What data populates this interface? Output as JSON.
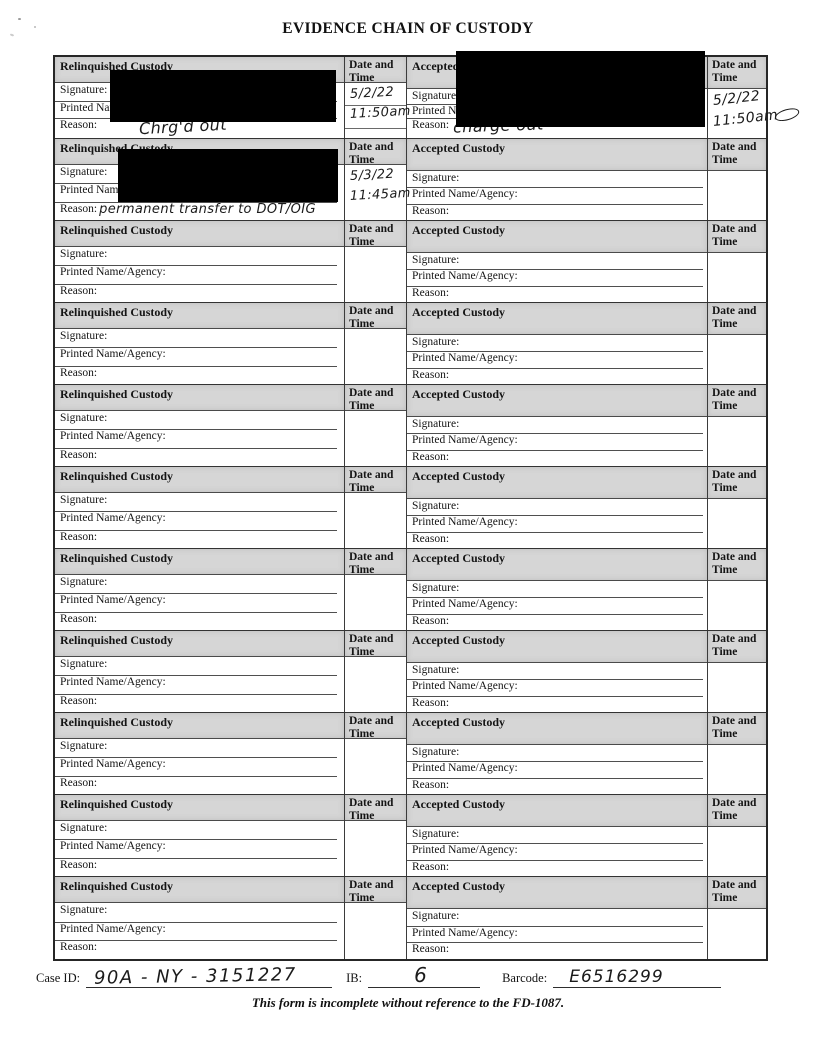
{
  "title": "EVIDENCE CHAIN OF CUSTODY",
  "labels": {
    "relinquished": "Relinquished Custody",
    "accepted": "Accepted Custody",
    "date_time": "Date and Time",
    "signature": "Signature:",
    "printed_name": "Printed Name/Agency:",
    "reason": "Reason:"
  },
  "colors": {
    "header_fill": "#d6d6d6",
    "ink": "#1b1b1b",
    "redaction": "#000000"
  },
  "blocks": [
    {
      "left": {
        "redacted": true,
        "dates": [
          "5/2/22",
          "11:50am"
        ],
        "reason": "Chrg'd out"
      },
      "right": {
        "redacted": true,
        "dates": [
          "5/2/22",
          "11:50am"
        ],
        "reason": "charge out",
        "flourish": true
      }
    },
    {
      "left": {
        "redacted": true,
        "dates": [
          "5/3/22",
          "11:45am"
        ],
        "reason": "permanent transfer to DOT/OIG"
      },
      "right": {
        "redacted": false
      }
    },
    {
      "left": {
        "redacted": false
      },
      "right": {
        "redacted": false
      }
    },
    {
      "left": {
        "redacted": false
      },
      "right": {
        "redacted": false
      }
    },
    {
      "left": {
        "redacted": false
      },
      "right": {
        "redacted": false
      }
    },
    {
      "left": {
        "redacted": false
      },
      "right": {
        "redacted": false
      }
    },
    {
      "left": {
        "redacted": false
      },
      "right": {
        "redacted": false
      }
    },
    {
      "left": {
        "redacted": false
      },
      "right": {
        "redacted": false
      }
    },
    {
      "left": {
        "redacted": false
      },
      "right": {
        "redacted": false
      }
    },
    {
      "left": {
        "redacted": false
      },
      "right": {
        "redacted": false
      }
    },
    {
      "left": {
        "redacted": false
      },
      "right": {
        "redacted": false
      }
    }
  ],
  "footer": {
    "case_id_label": "Case ID:",
    "case_id_value": "90A - NY - 3151227",
    "ib_label": "IB:",
    "ib_value": "6",
    "barcode_label": "Barcode:",
    "barcode_value": "E6516299",
    "disclaimer": "This form is incomplete without reference to the FD-1087."
  }
}
